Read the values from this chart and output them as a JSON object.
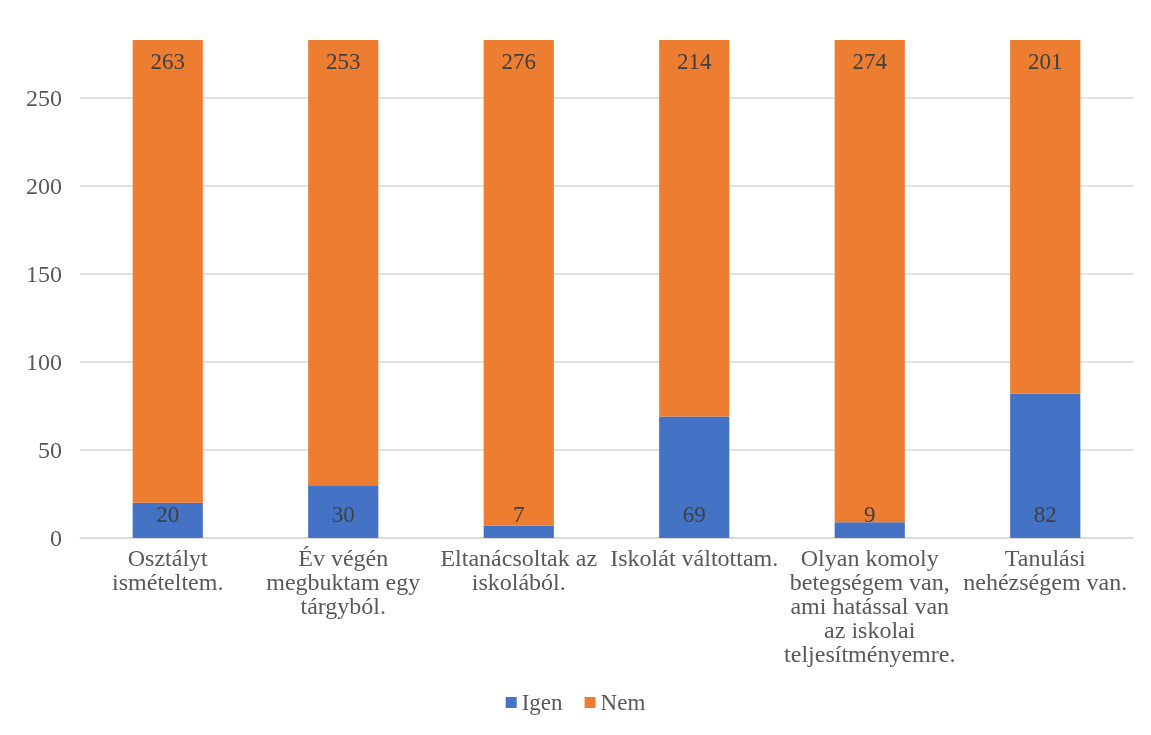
{
  "chart_data": {
    "type": "bar",
    "stacked": true,
    "categories": [
      "Osztályt ismételtem.",
      "Év végén megbuktam egy tárgyból.",
      "Eltanácsoltak az iskolából.",
      "Iskolát váltottam.",
      "Olyan komoly betegségem van, ami hatással van az iskolai teljesítményemre.",
      "Tanulási nehézségem van."
    ],
    "series": [
      {
        "name": "Igen",
        "color": "#4472c4",
        "values": [
          20,
          30,
          7,
          69,
          9,
          82
        ]
      },
      {
        "name": "Nem",
        "color": "#ed7d31",
        "values": [
          263,
          253,
          276,
          214,
          274,
          201
        ]
      }
    ],
    "ylim": [
      0,
      283
    ],
    "yticks": [
      0,
      50,
      100,
      150,
      200,
      250
    ],
    "grid": "y",
    "legend": "bottom",
    "data_labels": true
  }
}
